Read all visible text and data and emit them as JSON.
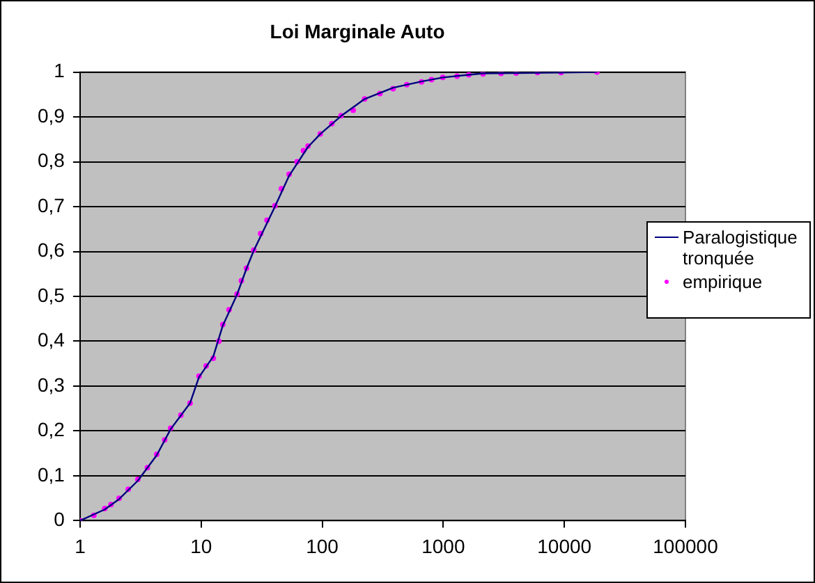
{
  "chart_data": {
    "type": "line",
    "title": "Loi Marginale Auto",
    "log": "x",
    "grid": "y",
    "legend": "right",
    "xlim": [
      1,
      100000
    ],
    "xticks": [
      1,
      10,
      100,
      1000,
      10000,
      100000
    ],
    "ylim": [
      0,
      1
    ],
    "yticks": [
      0,
      {
        "value": 0.1,
        "label": "0,1"
      },
      {
        "value": 0.2,
        "label": "0,2"
      },
      {
        "value": 0.3,
        "label": "0,3"
      },
      {
        "value": 0.4,
        "label": "0,4"
      },
      {
        "value": 0.5,
        "label": "0,5"
      },
      {
        "value": 0.6,
        "label": "0,6"
      },
      {
        "value": 0.7,
        "label": "0,7"
      },
      {
        "value": 0.8,
        "label": "0,8"
      },
      {
        "value": 0.9,
        "label": "0,9"
      },
      1
    ],
    "series": [
      {
        "name": "Paralogistique tronquée",
        "marker": "none",
        "color": "#000080",
        "x": [
          1,
          1.6,
          2.1,
          3,
          4.3,
          5.6,
          8.1,
          9.6,
          12.6,
          15.1,
          19.8,
          23.7,
          27.2,
          40.7,
          53.3,
          76.3,
          96.4,
          143,
          224,
          385,
          661,
          991,
          1625,
          2130,
          9400,
          18600
        ],
        "values": [
          0,
          0.025,
          0.048,
          0.089,
          0.146,
          0.204,
          0.262,
          0.32,
          0.366,
          0.435,
          0.504,
          0.562,
          0.602,
          0.7,
          0.769,
          0.833,
          0.862,
          0.902,
          0.94,
          0.965,
          0.979,
          0.988,
          0.994,
          0.997,
          0.999,
          1
        ]
      },
      {
        "name": "empirique",
        "type": "scatter",
        "marker": "circle",
        "color": "#ff00ff",
        "x": [
          1,
          1.3,
          1.6,
          1.8,
          2.1,
          2.5,
          3,
          3.6,
          4.3,
          5,
          5.6,
          6.8,
          8.1,
          9.6,
          11,
          12.6,
          14,
          15.1,
          17,
          19.8,
          21.5,
          23.7,
          27.2,
          31,
          35,
          40.7,
          46,
          53.3,
          62,
          70,
          76.3,
          96.4,
          120,
          143,
          180,
          224,
          300,
          385,
          500,
          661,
          800,
          991,
          1300,
          1625,
          2130,
          3000,
          4000,
          6000,
          9400,
          18600
        ],
        "values": [
          0,
          0.012,
          0.027,
          0.036,
          0.05,
          0.07,
          0.092,
          0.118,
          0.148,
          0.18,
          0.206,
          0.235,
          0.262,
          0.322,
          0.345,
          0.362,
          0.4,
          0.437,
          0.47,
          0.505,
          0.535,
          0.563,
          0.603,
          0.64,
          0.67,
          0.702,
          0.74,
          0.772,
          0.8,
          0.825,
          0.835,
          0.862,
          0.885,
          0.903,
          0.915,
          0.94,
          0.952,
          0.963,
          0.972,
          0.978,
          0.983,
          0.988,
          0.991,
          0.994,
          0.996,
          0.997,
          0.998,
          0.999,
          0.999,
          1
        ]
      }
    ]
  }
}
